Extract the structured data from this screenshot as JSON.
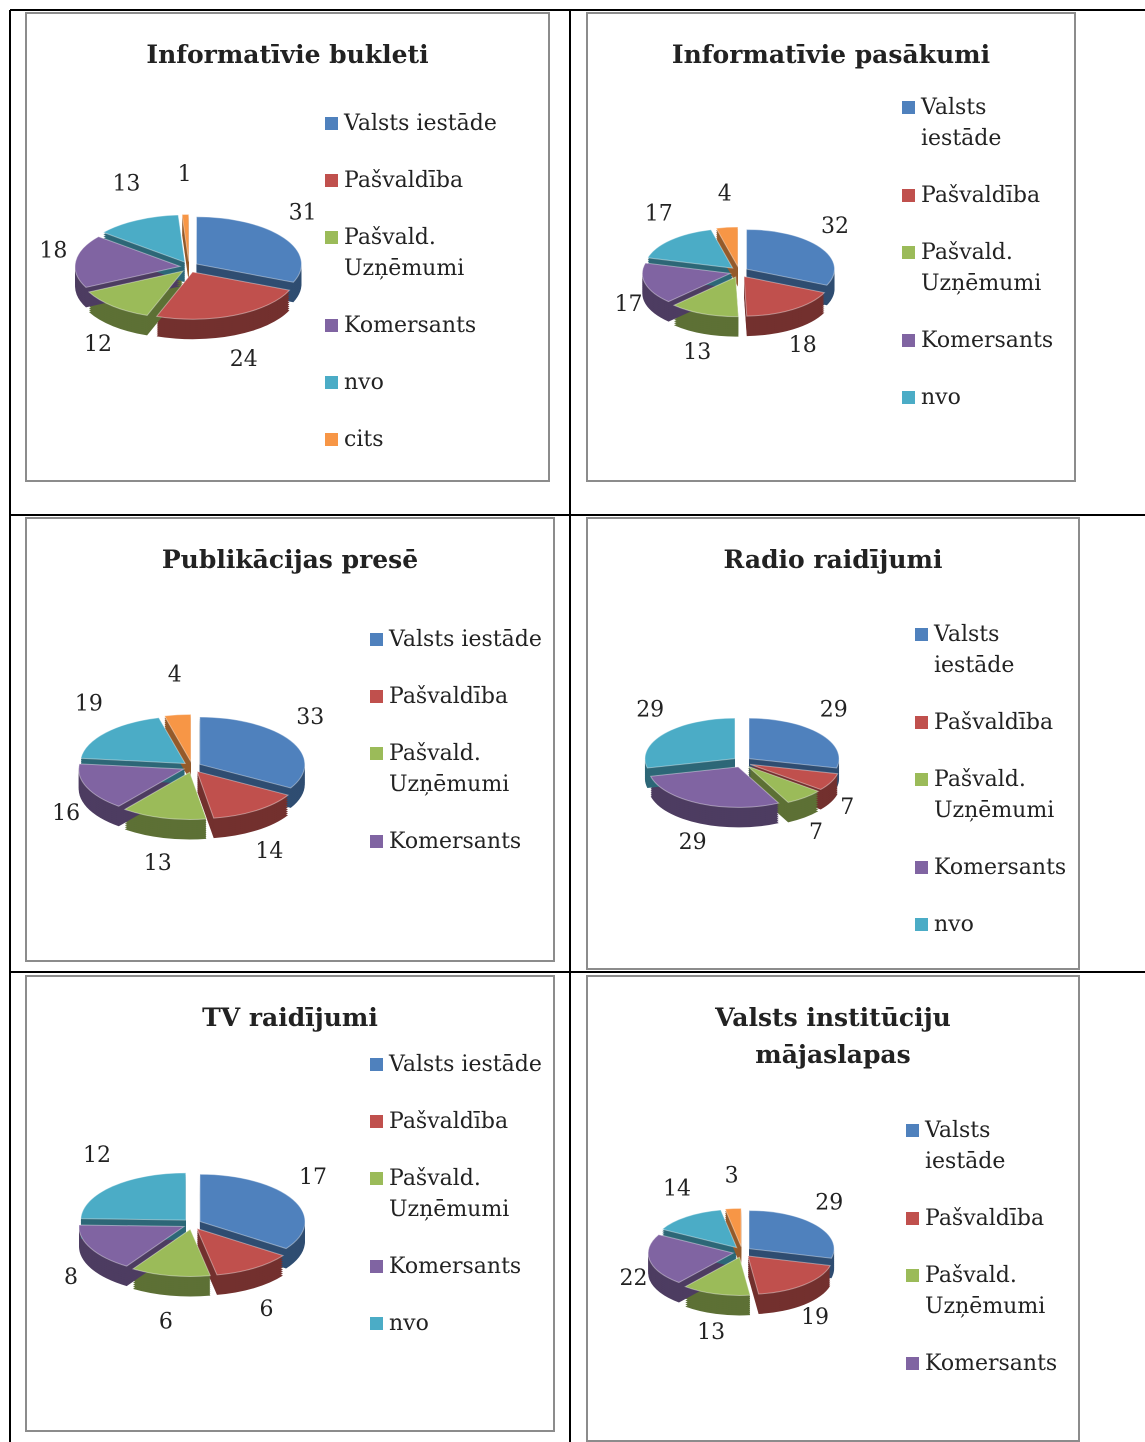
{
  "chart_data": [
    {
      "type": "pie",
      "title": "Informatīvie bukleti",
      "categories": [
        "Valsts iestāde",
        "Pašvaldība",
        "Pašvald. Uzņēmumi",
        "Komersants",
        "nvo",
        "cits"
      ],
      "values": [
        31,
        24,
        12,
        18,
        13,
        1
      ],
      "colors": [
        "#4f81bd",
        "#c0504d",
        "#9bbb59",
        "#8064a2",
        "#4bacc6",
        "#f79646"
      ]
    },
    {
      "type": "pie",
      "title": "Informatīvie pasākumi",
      "categories": [
        "Valsts iestāde",
        "Pašvaldība",
        "Pašvald. Uzņēmumi",
        "Komersants",
        "nvo",
        null
      ],
      "values": [
        32,
        18,
        13,
        17,
        17,
        4
      ],
      "colors": [
        "#4f81bd",
        "#c0504d",
        "#9bbb59",
        "#8064a2",
        "#4bacc6",
        "#f79646"
      ]
    },
    {
      "type": "pie",
      "title": "Publikācijas presē",
      "categories": [
        "Valsts iestāde",
        "Pašvaldība",
        "Pašvald. Uzņēmumi",
        "Komersants",
        null,
        null
      ],
      "values": [
        33,
        14,
        13,
        16,
        19,
        4
      ],
      "colors": [
        "#4f81bd",
        "#c0504d",
        "#9bbb59",
        "#8064a2",
        "#4bacc6",
        "#f79646"
      ]
    },
    {
      "type": "pie",
      "title": "Radio raidījumi",
      "categories": [
        "Valsts iestāde",
        "Pašvaldība",
        "Pašvald. Uzņēmumi",
        "Komersants",
        "nvo"
      ],
      "values": [
        29,
        7,
        7,
        29,
        29
      ],
      "colors": [
        "#4f81bd",
        "#c0504d",
        "#9bbb59",
        "#8064a2",
        "#4bacc6"
      ]
    },
    {
      "type": "pie",
      "title": "TV raidījumi",
      "categories": [
        "Valsts iestāde",
        "Pašvaldība",
        "Pašvald. Uzņēmumi",
        "Komersants",
        "nvo"
      ],
      "values": [
        17,
        6,
        6,
        8,
        12
      ],
      "colors": [
        "#4f81bd",
        "#c0504d",
        "#9bbb59",
        "#8064a2",
        "#4bacc6"
      ]
    },
    {
      "type": "pie",
      "title": "Valsts institūciju mājaslapas",
      "categories": [
        "Valsts iestāde",
        "Pašvaldība",
        "Pašvald. Uzņēmumi",
        "Komersants",
        null,
        null
      ],
      "values": [
        29,
        19,
        13,
        22,
        14,
        3
      ],
      "colors": [
        "#4f81bd",
        "#c0504d",
        "#9bbb59",
        "#8064a2",
        "#4bacc6",
        "#f79646"
      ]
    }
  ]
}
